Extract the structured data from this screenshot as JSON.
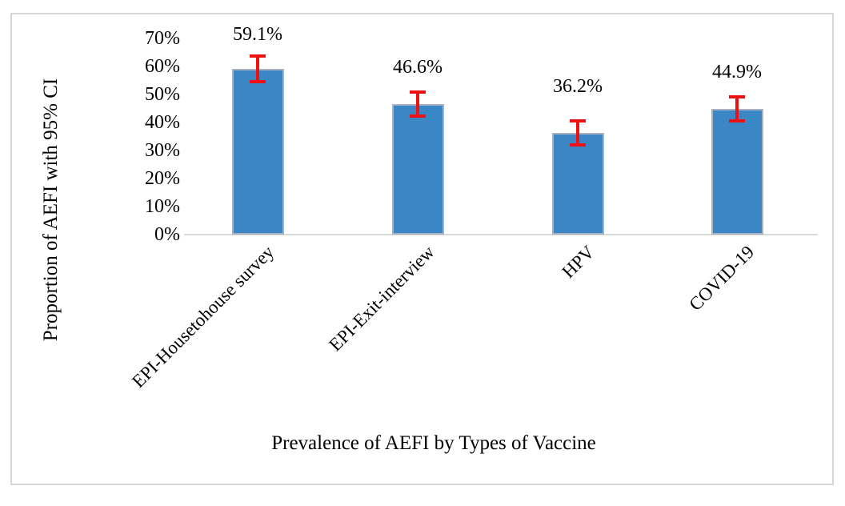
{
  "chart_data": {
    "type": "bar",
    "categories": [
      "EPI-Housetohouse survey",
      "EPI-Exit-interview",
      "HPV",
      "COVID-19"
    ],
    "values": [
      59.1,
      46.6,
      36.2,
      44.9
    ],
    "value_labels": [
      "59.1%",
      "46.6%",
      "36.2%",
      "44.9%"
    ],
    "error_bars": {
      "kind": "95% CI",
      "plus_minus": [
        4.6,
        4.3,
        4.3,
        4.2
      ]
    },
    "title": "",
    "xlabel": "Prevalence of AEFI by Types of Vaccine",
    "ylabel": "Proportion of AEFI with 95% CI",
    "ylim": [
      0,
      70
    ],
    "ytick_step": 10,
    "ytick_labels": [
      "0%",
      "10%",
      "20%",
      "30%",
      "40%",
      "50%",
      "60%",
      "70%"
    ],
    "grid": false,
    "legend": "none",
    "colors": {
      "bar_fill": "#3b87c6",
      "bar_border": "#a9b2c0",
      "error_bar": "#ee1111",
      "axis_line": "#d9d9d9",
      "frame_border": "#d6d6d6",
      "text": "#000000",
      "background": "#ffffff"
    }
  }
}
